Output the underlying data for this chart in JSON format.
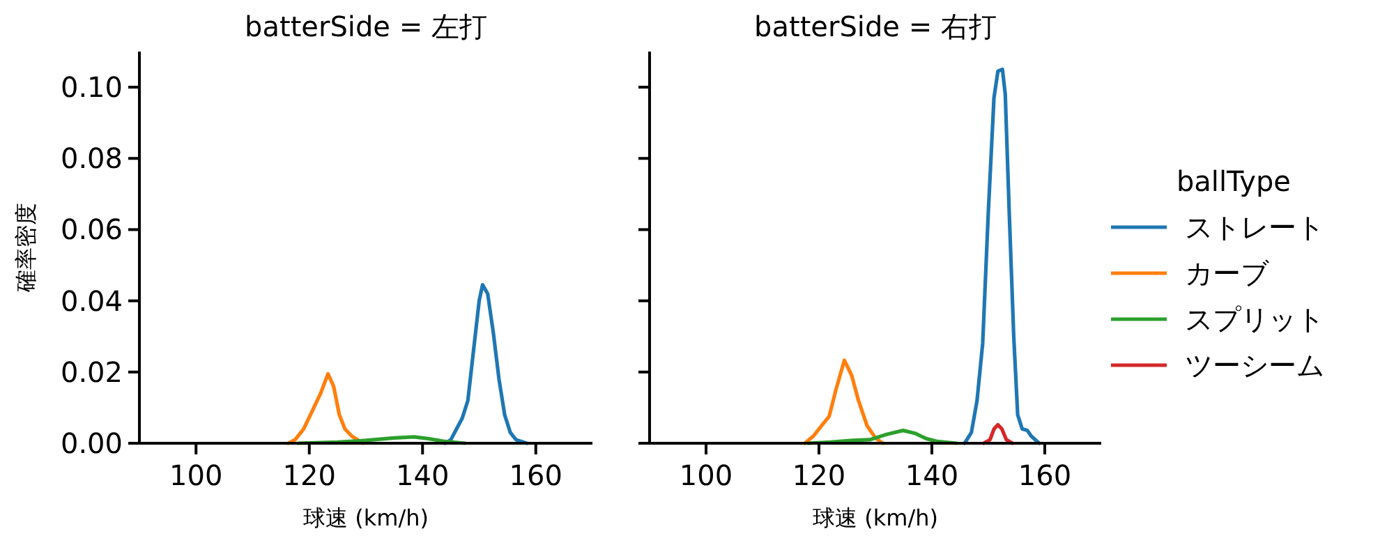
{
  "chart_data": [
    {
      "type": "line",
      "title": "batterSide = 左打",
      "xlabel": "球速 (km/h)",
      "ylabel": "確率密度",
      "xlim": [
        90,
        170
      ],
      "ylim": [
        0,
        0.11
      ],
      "xticks": [
        100,
        120,
        140,
        160
      ],
      "yticks": [
        {
          "value": 0,
          "label": "0.00"
        },
        0.02,
        0.04,
        0.06,
        0.08,
        {
          "value": 0.1,
          "label": "0.10"
        }
      ],
      "series": [
        {
          "color": "#1f77b4",
          "x": [
            144,
            145,
            146,
            147,
            148,
            149,
            150,
            150.6,
            151.5,
            152.5,
            153.5,
            154.5,
            155.5,
            156.5,
            158.4
          ],
          "values": [
            0,
            0.001,
            0.004,
            0.007,
            0.012,
            0.026,
            0.04,
            0.0445,
            0.042,
            0.031,
            0.018,
            0.008,
            0.003,
            0.001,
            0
          ]
        },
        {
          "color": "#ff7f0e",
          "x": [
            116.3,
            117.5,
            119,
            120.5,
            122,
            123.3,
            124.3,
            125.3,
            126.3,
            127.5,
            129.5
          ],
          "values": [
            0,
            0.001,
            0.004,
            0.009,
            0.014,
            0.0195,
            0.016,
            0.008,
            0.004,
            0.002,
            0
          ]
        },
        {
          "color": "#2ca02c",
          "x": [
            118,
            125,
            130,
            135,
            138.5,
            141,
            144,
            147.5
          ],
          "values": [
            0,
            0.0003,
            0.0008,
            0.0015,
            0.0018,
            0.0013,
            0.0005,
            0
          ]
        }
      ]
    },
    {
      "type": "line",
      "title": "batterSide = 右打",
      "xlabel": "球速 (km/h)",
      "xlim": [
        90,
        170
      ],
      "ylim": [
        0,
        0.11
      ],
      "xticks": [
        100,
        120,
        140,
        160
      ],
      "yticks": [
        {
          "value": 0,
          "label": null
        },
        {
          "value": 0.02,
          "label": null
        },
        {
          "value": 0.04,
          "label": null
        },
        {
          "value": 0.06,
          "label": null
        },
        {
          "value": 0.08,
          "label": null
        },
        {
          "value": 0.1,
          "label": null
        }
      ],
      "tick_labels": "x",
      "legend": "right",
      "legend_title": "ballType",
      "series": [
        {
          "name": "ストレート",
          "color": "#1f77b4",
          "x": [
            145.8,
            147,
            148,
            149,
            150,
            151,
            151.7,
            152.5,
            153,
            153.7,
            154.5,
            155.2,
            156,
            156.9,
            157.6,
            159
          ],
          "values": [
            0,
            0.003,
            0.012,
            0.028,
            0.065,
            0.097,
            0.1045,
            0.105,
            0.098,
            0.065,
            0.03,
            0.008,
            0.004,
            0.0036,
            0.002,
            0
          ]
        },
        {
          "name": "カーブ",
          "color": "#ff7f0e",
          "x": [
            117.5,
            119,
            120.5,
            121.8,
            123,
            124.5,
            125.8,
            127,
            128.5,
            130,
            131.3
          ],
          "values": [
            0,
            0.002,
            0.005,
            0.0075,
            0.015,
            0.0233,
            0.019,
            0.012,
            0.005,
            0.0015,
            0
          ]
        },
        {
          "name": "スプリット",
          "color": "#2ca02c",
          "x": [
            118,
            122,
            126,
            129,
            132,
            134.9,
            137,
            139,
            141,
            144.4
          ],
          "values": [
            0,
            0.0003,
            0.0008,
            0.001,
            0.0025,
            0.0036,
            0.0028,
            0.0013,
            0.0005,
            0
          ]
        },
        {
          "name": "ツーシーム",
          "color": "#d62728",
          "x": [
            149.2,
            150.3,
            151,
            151.7,
            152.4,
            153.2,
            154.3
          ],
          "values": [
            0,
            0.001,
            0.004,
            0.0052,
            0.004,
            0.001,
            0
          ]
        }
      ]
    }
  ]
}
